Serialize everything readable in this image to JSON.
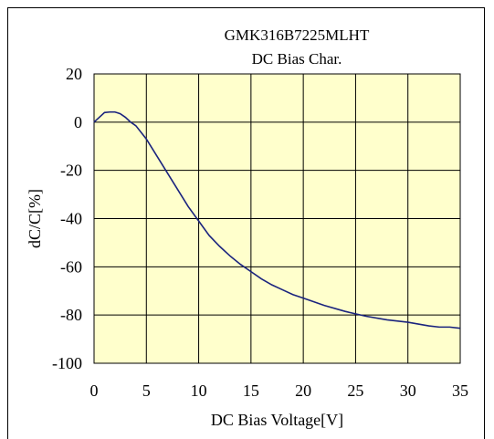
{
  "chart_data": {
    "type": "line",
    "title": "GMK316B7225MLHT",
    "subtitle": "DC Bias Char.",
    "xlabel": "DC Bias Voltage[V]",
    "ylabel": "dC/C[%]",
    "xlim": [
      0,
      35
    ],
    "ylim": [
      -100,
      20
    ],
    "xticks": [
      "0",
      "5",
      "10",
      "15",
      "20",
      "25",
      "30",
      "35"
    ],
    "yticks": [
      "20",
      "0",
      "-20",
      "-40",
      "-60",
      "-80",
      "-100"
    ],
    "grid": true,
    "plot_background": "#ffffcc",
    "series": [
      {
        "color": "#1a237e",
        "x": [
          0,
          0.5,
          1,
          1.5,
          2,
          2.5,
          3,
          3.5,
          4,
          5,
          6,
          7,
          8,
          9,
          10,
          11,
          12,
          13,
          14,
          15,
          16,
          17,
          18,
          19,
          20,
          22,
          24,
          25,
          26,
          28,
          30,
          32,
          33,
          34,
          35
        ],
        "y": [
          0,
          2,
          4,
          4.2,
          4.2,
          3.5,
          2,
          0,
          -1.5,
          -7,
          -14,
          -21,
          -28,
          -35,
          -41,
          -47,
          -51.5,
          -55.5,
          -59,
          -62,
          -65,
          -67.5,
          -69.5,
          -71.5,
          -73,
          -76,
          -78.5,
          -79.5,
          -80.5,
          -82,
          -83,
          -84.5,
          -85,
          -85,
          -85.5
        ]
      }
    ]
  }
}
